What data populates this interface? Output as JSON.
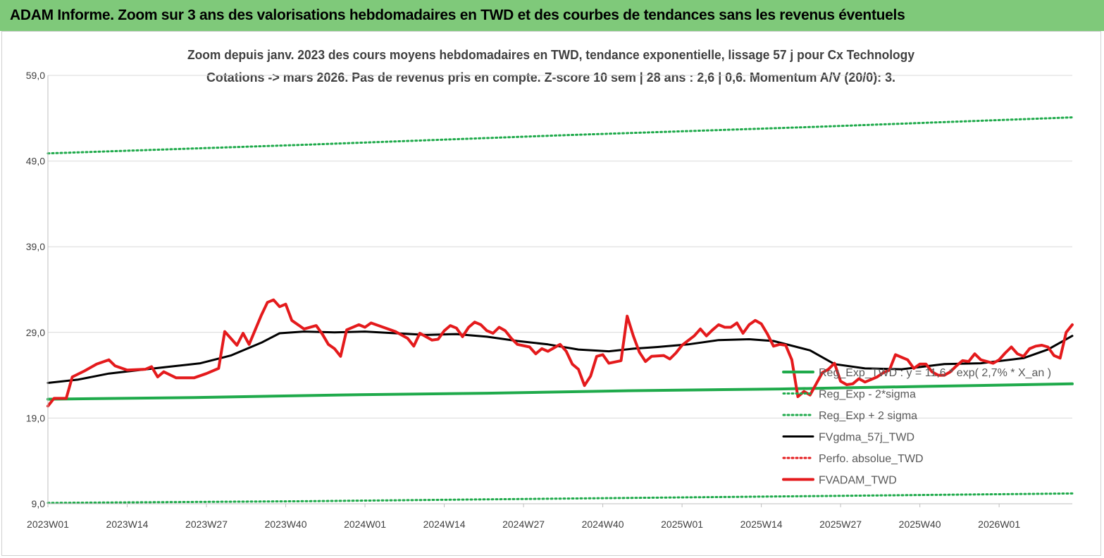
{
  "banner_title": "ADAM Informe. Zoom sur 3 ans des valorisations hebdomadaires en TWD et des courbes de tendances sans les revenus éventuels",
  "colors": {
    "banner": "#7fc97a",
    "regression": "#1faa4b",
    "sigma": "#1faa4b",
    "moving_average": "#000000",
    "absolute_perf": "#e41a1c",
    "value": "#e41a1c",
    "grid": "#d9d9d9"
  },
  "chart_data": {
    "type": "line",
    "title": "Zoom depuis janv. 2023 des cours moyens hebdomadaires en TWD, tendance exponentielle, lissage 57 j pour Cx Technology",
    "subtitle": "Cotations -> mars 2026. Pas de revenus pris en compte. Z-score 10 sem | 28 ans : 2,6 | 0,6. Momentum A/V (20/0): 3.",
    "xlabel": "",
    "ylabel": "",
    "x_tick_labels": [
      "2023W01",
      "2023W14",
      "2023W27",
      "2023W40",
      "2024W01",
      "2024W14",
      "2024W27",
      "2024W40",
      "2025W01",
      "2025W14",
      "2025W27",
      "2025W40",
      "2026W01"
    ],
    "weeks_per_tick": 13,
    "total_weeks": 168,
    "y_tick_labels": [
      "9,0",
      "19,0",
      "29,0",
      "39,0",
      "49,0",
      "59,0"
    ],
    "y_ticks": [
      9,
      19,
      29,
      39,
      49,
      59
    ],
    "ylim": [
      9,
      59
    ],
    "grid": "horizontal",
    "legend_position": "right",
    "series": [
      {
        "name": "Reg_Exp_TWD : y = 11,6 * exp( 2,7% * X_an )",
        "style": "solid-thick",
        "color": "#1faa4b",
        "points": [
          [
            0,
            21.2
          ],
          [
            24,
            21.4
          ],
          [
            48,
            21.7
          ],
          [
            72,
            21.9
          ],
          [
            96,
            22.2
          ],
          [
            120,
            22.4
          ],
          [
            144,
            22.7
          ],
          [
            168,
            23.0
          ]
        ]
      },
      {
        "name": "Reg_Exp - 2*sigma",
        "style": "dotted",
        "color": "#1faa4b",
        "points": [
          [
            0,
            9.1
          ],
          [
            42,
            9.3
          ],
          [
            84,
            9.6
          ],
          [
            126,
            9.9
          ],
          [
            168,
            10.2
          ]
        ]
      },
      {
        "name": "Reg_Exp + 2 sigma",
        "style": "dotted",
        "color": "#1faa4b",
        "points": [
          [
            0,
            49.9
          ],
          [
            42,
            50.9
          ],
          [
            84,
            52.0
          ],
          [
            126,
            53.0
          ],
          [
            168,
            54.1
          ]
        ]
      },
      {
        "name": "FVgdma_57j_TWD",
        "style": "solid",
        "color": "#000000",
        "points": [
          [
            0,
            23.1
          ],
          [
            5,
            23.5
          ],
          [
            10,
            24.2
          ],
          [
            15,
            24.6
          ],
          [
            20,
            25.0
          ],
          [
            25,
            25.4
          ],
          [
            30,
            26.3
          ],
          [
            35,
            27.8
          ],
          [
            38,
            28.9
          ],
          [
            42,
            29.1
          ],
          [
            47,
            29.0
          ],
          [
            52,
            29.1
          ],
          [
            57,
            28.9
          ],
          [
            62,
            28.7
          ],
          [
            67,
            28.8
          ],
          [
            72,
            28.5
          ],
          [
            77,
            28.0
          ],
          [
            82,
            27.6
          ],
          [
            87,
            27.0
          ],
          [
            92,
            26.8
          ],
          [
            96,
            27.1
          ],
          [
            100,
            27.3
          ],
          [
            105,
            27.6
          ],
          [
            110,
            28.1
          ],
          [
            115,
            28.2
          ],
          [
            119,
            28.0
          ],
          [
            125,
            26.9
          ],
          [
            129,
            25.3
          ],
          [
            134,
            24.8
          ],
          [
            140,
            24.7
          ],
          [
            147,
            25.3
          ],
          [
            153,
            25.4
          ],
          [
            160,
            26.0
          ],
          [
            164,
            27.0
          ],
          [
            168,
            28.6
          ]
        ]
      },
      {
        "name": "Perfo. absolue_TWD",
        "style": "dotted",
        "color": "#e41a1c",
        "points": []
      },
      {
        "name": "FVADAM_TWD",
        "style": "solid-thick",
        "color": "#e41a1c",
        "points": [
          [
            0,
            20.4
          ],
          [
            1,
            21.3
          ],
          [
            3,
            21.3
          ],
          [
            4,
            23.8
          ],
          [
            6,
            24.5
          ],
          [
            8,
            25.3
          ],
          [
            10,
            25.8
          ],
          [
            11,
            25.1
          ],
          [
            13,
            24.6
          ],
          [
            16,
            24.7
          ],
          [
            17,
            25.0
          ],
          [
            18,
            23.8
          ],
          [
            19,
            24.4
          ],
          [
            21,
            23.7
          ],
          [
            24,
            23.7
          ],
          [
            26,
            24.2
          ],
          [
            28,
            24.8
          ],
          [
            29,
            29.1
          ],
          [
            31,
            27.5
          ],
          [
            32,
            28.9
          ],
          [
            33,
            27.6
          ],
          [
            35,
            31.0
          ],
          [
            36,
            32.5
          ],
          [
            37,
            32.8
          ],
          [
            38,
            32.0
          ],
          [
            39,
            32.3
          ],
          [
            40,
            30.4
          ],
          [
            42,
            29.4
          ],
          [
            44,
            29.8
          ],
          [
            45,
            28.8
          ],
          [
            46,
            27.6
          ],
          [
            47,
            27.1
          ],
          [
            48,
            26.2
          ],
          [
            49,
            29.3
          ],
          [
            51,
            29.9
          ],
          [
            52,
            29.6
          ],
          [
            53,
            30.1
          ],
          [
            55,
            29.6
          ],
          [
            57,
            29.1
          ],
          [
            59,
            28.3
          ],
          [
            60,
            27.4
          ],
          [
            61,
            28.9
          ],
          [
            63,
            28.1
          ],
          [
            64,
            28.2
          ],
          [
            65,
            29.2
          ],
          [
            66,
            29.8
          ],
          [
            67,
            29.5
          ],
          [
            68,
            28.5
          ],
          [
            69,
            29.6
          ],
          [
            70,
            30.2
          ],
          [
            71,
            29.9
          ],
          [
            72,
            29.2
          ],
          [
            73,
            28.9
          ],
          [
            74,
            29.6
          ],
          [
            75,
            29.2
          ],
          [
            76,
            28.3
          ],
          [
            77,
            27.6
          ],
          [
            79,
            27.3
          ],
          [
            80,
            26.5
          ],
          [
            81,
            27.1
          ],
          [
            82,
            26.8
          ],
          [
            83,
            27.2
          ],
          [
            84,
            27.6
          ],
          [
            85,
            26.8
          ],
          [
            86,
            25.3
          ],
          [
            87,
            24.7
          ],
          [
            88,
            22.8
          ],
          [
            89,
            23.9
          ],
          [
            90,
            26.2
          ],
          [
            91,
            26.4
          ],
          [
            92,
            25.4
          ],
          [
            94,
            25.7
          ],
          [
            95,
            30.9
          ],
          [
            96,
            28.6
          ],
          [
            97,
            26.7
          ],
          [
            98,
            25.6
          ],
          [
            99,
            26.2
          ],
          [
            101,
            26.3
          ],
          [
            102,
            25.9
          ],
          [
            103,
            26.6
          ],
          [
            104,
            27.5
          ],
          [
            106,
            28.6
          ],
          [
            107,
            29.4
          ],
          [
            108,
            28.6
          ],
          [
            109,
            29.3
          ],
          [
            110,
            29.9
          ],
          [
            111,
            29.6
          ],
          [
            112,
            29.6
          ],
          [
            113,
            30.1
          ],
          [
            114,
            28.9
          ],
          [
            115,
            29.9
          ],
          [
            116,
            30.4
          ],
          [
            117,
            30.0
          ],
          [
            118,
            28.8
          ],
          [
            119,
            27.4
          ],
          [
            120,
            27.6
          ],
          [
            121,
            27.5
          ],
          [
            122,
            25.8
          ],
          [
            123,
            21.5
          ],
          [
            124,
            22.1
          ],
          [
            125,
            21.7
          ],
          [
            126,
            23.0
          ],
          [
            127,
            24.3
          ],
          [
            128,
            24.7
          ],
          [
            129,
            25.4
          ],
          [
            130,
            23.3
          ],
          [
            131,
            22.9
          ],
          [
            132,
            23.0
          ],
          [
            133,
            23.6
          ],
          [
            134,
            23.2
          ],
          [
            135,
            23.5
          ],
          [
            136,
            23.8
          ],
          [
            137,
            24.3
          ],
          [
            138,
            24.6
          ],
          [
            139,
            26.4
          ],
          [
            140,
            26.1
          ],
          [
            141,
            25.8
          ],
          [
            142,
            24.8
          ],
          [
            143,
            25.3
          ],
          [
            144,
            25.3
          ],
          [
            145,
            24.4
          ],
          [
            146,
            24.0
          ],
          [
            147,
            24.0
          ],
          [
            148,
            24.4
          ],
          [
            149,
            25.1
          ],
          [
            150,
            25.7
          ],
          [
            151,
            25.6
          ],
          [
            152,
            26.5
          ],
          [
            153,
            25.8
          ],
          [
            154,
            25.6
          ],
          [
            155,
            25.4
          ],
          [
            156,
            25.8
          ],
          [
            157,
            26.6
          ],
          [
            158,
            27.3
          ],
          [
            159,
            26.5
          ],
          [
            160,
            26.2
          ],
          [
            161,
            27.1
          ],
          [
            162,
            27.4
          ],
          [
            163,
            27.5
          ],
          [
            164,
            27.3
          ],
          [
            165,
            26.3
          ],
          [
            166,
            26.0
          ],
          [
            167,
            29.0
          ],
          [
            168,
            29.9
          ]
        ]
      }
    ]
  }
}
